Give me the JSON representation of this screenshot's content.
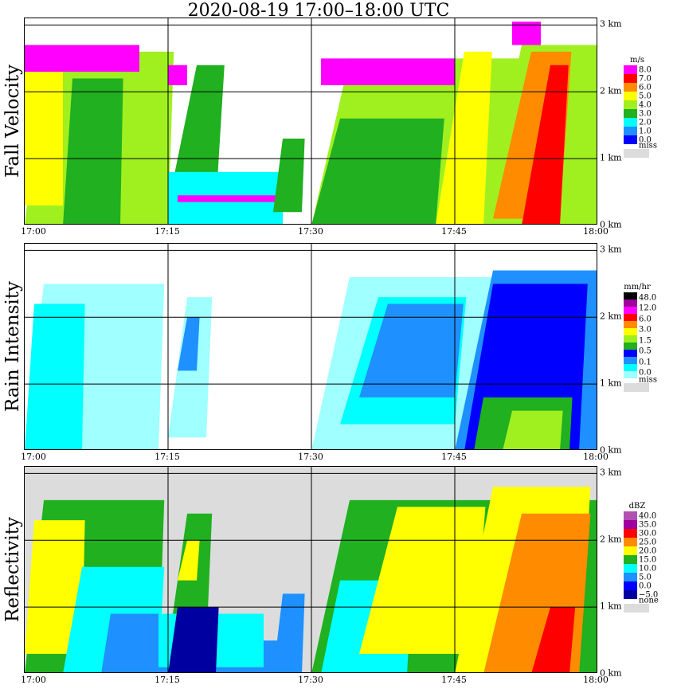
{
  "title": "2020-08-19   17:00–18:00 UTC",
  "x_ticks": [
    "17:00",
    "17:15",
    "17:30",
    "17:45",
    "18:00"
  ],
  "y_ticks": [
    "0 km",
    "1 km",
    "2 km",
    "3 km"
  ],
  "chart_data": [
    {
      "type": "heatmap",
      "title": "Fall Velocity",
      "ylabel": "Fall Velocity",
      "xlim_minutes_after_1700": [
        0,
        60
      ],
      "ylim_km": [
        0,
        3.1
      ],
      "legend": {
        "unit": "m/s",
        "labels": [
          "8.0",
          "7.0",
          "6.0",
          "5.0",
          "4.0",
          "3.0",
          "2.0",
          "1.0",
          "0.0"
        ],
        "colors": [
          "#ff00ff",
          "#ff0000",
          "#ff8c00",
          "#ffff00",
          "#a0f020",
          "#20b020",
          "#00ffff",
          "#1e90ff",
          "#0000ff"
        ],
        "miss_label": "miss",
        "miss_color": "#dcdcdc"
      },
      "background": "#ffffff",
      "cells": [
        {
          "t0": 0,
          "t1": 15,
          "base": 0,
          "top": 2.6,
          "slant": 2,
          "color": "#a0f020"
        },
        {
          "t0": 0,
          "t1": 4,
          "base": 0.3,
          "top": 2.3,
          "slant": 0,
          "color": "#ffff00"
        },
        {
          "t0": 4,
          "t1": 10,
          "base": 0,
          "top": 2.2,
          "slant": 1,
          "color": "#20b020"
        },
        {
          "t0": 0,
          "t1": 12,
          "base": 2.3,
          "top": 2.7,
          "slant": 0,
          "color": "#ff00ff"
        },
        {
          "t0": 15,
          "t1": 20,
          "base": 0.3,
          "top": 2.4,
          "slant": 3,
          "color": "#20b020"
        },
        {
          "t0": 15,
          "t1": 17,
          "base": 2.1,
          "top": 2.4,
          "slant": 0,
          "color": "#ff00ff"
        },
        {
          "t0": 15,
          "t1": 27,
          "base": 0,
          "top": 0.8,
          "slant": 0,
          "color": "#00ffff"
        },
        {
          "t0": 16,
          "t1": 27,
          "base": 0.35,
          "top": 0.45,
          "slant": 0,
          "color": "#ff00ff"
        },
        {
          "t0": 26,
          "t1": 29,
          "base": 0.2,
          "top": 1.3,
          "slant": 1,
          "color": "#20b020"
        },
        {
          "t0": 30,
          "t1": 52,
          "base": 0,
          "top": 2.5,
          "slant": 4,
          "color": "#a0f020"
        },
        {
          "t0": 30,
          "t1": 43,
          "base": 0,
          "top": 1.6,
          "slant": 3,
          "color": "#20b020"
        },
        {
          "t0": 31,
          "t1": 45,
          "base": 2.1,
          "top": 2.5,
          "slant": 0,
          "color": "#ff00ff"
        },
        {
          "t0": 43,
          "t1": 48,
          "base": 0,
          "top": 2.6,
          "slant": 3,
          "color": "#ffff00"
        },
        {
          "t0": 48,
          "t1": 60,
          "base": 0,
          "top": 2.7,
          "slant": 4,
          "color": "#a0f020"
        },
        {
          "t0": 49,
          "t1": 56,
          "base": 0.1,
          "top": 2.6,
          "slant": 4,
          "color": "#ff8c00"
        },
        {
          "t0": 52,
          "t1": 56,
          "base": 0,
          "top": 2.4,
          "slant": 3,
          "color": "#ff0000"
        },
        {
          "t0": 51,
          "t1": 54,
          "base": 2.7,
          "top": 3.05,
          "slant": 0,
          "color": "#ff00ff"
        }
      ]
    },
    {
      "type": "heatmap",
      "title": "Rain Intensity",
      "ylabel": "Rain Intensity",
      "xlim_minutes_after_1700": [
        0,
        60
      ],
      "ylim_km": [
        0,
        3.1
      ],
      "legend": {
        "unit": "mm/hr",
        "labels": [
          "48.0",
          "12.0",
          "6.0",
          "3.0",
          "1.5",
          "0.5",
          "0.1",
          "0.0"
        ],
        "colors": [
          "#000000",
          "#a000a0",
          "#ff00ff",
          "#ff0000",
          "#ff8c00",
          "#ffff00",
          "#a0f020",
          "#20b020",
          "#0000ff",
          "#1e90ff",
          "#00ffff",
          "#a0ffff"
        ],
        "miss_label": "miss",
        "miss_color": "#dcdcdc"
      },
      "background": "#ffffff",
      "cells": [
        {
          "t0": 0,
          "t1": 14,
          "base": 0,
          "top": 2.5,
          "slant": 2,
          "color": "#a0ffff"
        },
        {
          "t0": 0,
          "t1": 6,
          "base": 0,
          "top": 2.2,
          "slant": 1,
          "color": "#00ffff"
        },
        {
          "t0": 15,
          "t1": 19,
          "base": 0.2,
          "top": 2.3,
          "slant": 2,
          "color": "#a0ffff"
        },
        {
          "t0": 16,
          "t1": 18,
          "base": 1.2,
          "top": 2.0,
          "slant": 1,
          "color": "#1e90ff"
        },
        {
          "t0": 30,
          "t1": 60,
          "base": 0,
          "top": 2.6,
          "slant": 4,
          "color": "#a0ffff"
        },
        {
          "t0": 33,
          "t1": 45,
          "base": 0.4,
          "top": 2.3,
          "slant": 4,
          "color": "#00ffff"
        },
        {
          "t0": 35,
          "t1": 45,
          "base": 0.8,
          "top": 2.2,
          "slant": 3,
          "color": "#1e90ff"
        },
        {
          "t0": 45,
          "t1": 60,
          "base": 0,
          "top": 2.7,
          "slant": 4,
          "color": "#1e90ff"
        },
        {
          "t0": 46,
          "t1": 58,
          "base": 0,
          "top": 2.5,
          "slant": 3,
          "color": "#0000ff"
        },
        {
          "t0": 47,
          "t1": 57,
          "base": 0,
          "top": 0.8,
          "slant": 1,
          "color": "#20b020"
        },
        {
          "t0": 50,
          "t1": 56,
          "base": 0,
          "top": 0.6,
          "slant": 1,
          "color": "#a0f020"
        }
      ]
    },
    {
      "type": "heatmap",
      "title": "Reflectivity",
      "ylabel": "Reflectivity",
      "xlim_minutes_after_1700": [
        0,
        60
      ],
      "ylim_km": [
        0,
        3.1
      ],
      "legend": {
        "unit": "dBZ",
        "labels": [
          "40.0",
          "35.0",
          "30.0",
          "25.0",
          "20.0",
          "15.0",
          "10.0",
          "5.0",
          "0.0",
          "−5.0"
        ],
        "colors": [
          "#b050b0",
          "#a000a0",
          "#ff0000",
          "#ff8c00",
          "#ffff00",
          "#20b020",
          "#00ffff",
          "#1e90ff",
          "#0000ff",
          "#0000a0"
        ],
        "miss_label": "none",
        "miss_color": "#dcdcdc"
      },
      "background": "#dcdcdc",
      "cells": [
        {
          "t0": 0,
          "t1": 14,
          "base": 0,
          "top": 2.6,
          "slant": 2,
          "color": "#20b020"
        },
        {
          "t0": 0,
          "t1": 6,
          "base": 0.3,
          "top": 2.3,
          "slant": 1,
          "color": "#ffff00"
        },
        {
          "t0": 4,
          "t1": 14,
          "base": 0,
          "top": 1.6,
          "slant": 2,
          "color": "#00ffff"
        },
        {
          "t0": 8,
          "t1": 14,
          "base": 0,
          "top": 0.9,
          "slant": 1,
          "color": "#1e90ff"
        },
        {
          "t0": 14,
          "t1": 27,
          "base": 0,
          "top": 0.5,
          "slant": 0,
          "color": "#1e90ff"
        },
        {
          "t0": 15,
          "t1": 19,
          "base": 0.4,
          "top": 2.4,
          "slant": 2,
          "color": "#20b020"
        },
        {
          "t0": 16,
          "t1": 18,
          "base": 1.4,
          "top": 2.0,
          "slant": 1,
          "color": "#ffff00"
        },
        {
          "t0": 14,
          "t1": 25,
          "base": 0.1,
          "top": 0.9,
          "slant": 0,
          "color": "#00ffff"
        },
        {
          "t0": 15,
          "t1": 20,
          "base": 0,
          "top": 1.0,
          "slant": 1,
          "color": "#0000a0"
        },
        {
          "t0": 26,
          "t1": 29,
          "base": 0,
          "top": 1.2,
          "slant": 1,
          "color": "#1e90ff"
        },
        {
          "t0": 30,
          "t1": 60,
          "base": 0,
          "top": 2.6,
          "slant": 4,
          "color": "#20b020"
        },
        {
          "t0": 31,
          "t1": 40,
          "base": 0,
          "top": 1.4,
          "slant": 2,
          "color": "#00ffff"
        },
        {
          "t0": 35,
          "t1": 47,
          "base": 0.3,
          "top": 2.5,
          "slant": 4,
          "color": "#ffff00"
        },
        {
          "t0": 45,
          "t1": 58,
          "base": 0,
          "top": 2.8,
          "slant": 4,
          "color": "#ffff00"
        },
        {
          "t0": 48,
          "t1": 58,
          "base": 0,
          "top": 2.4,
          "slant": 4,
          "color": "#ff8c00"
        },
        {
          "t0": 53,
          "t1": 57,
          "base": 0,
          "top": 1.0,
          "slant": 2,
          "color": "#ff0000"
        }
      ]
    }
  ]
}
